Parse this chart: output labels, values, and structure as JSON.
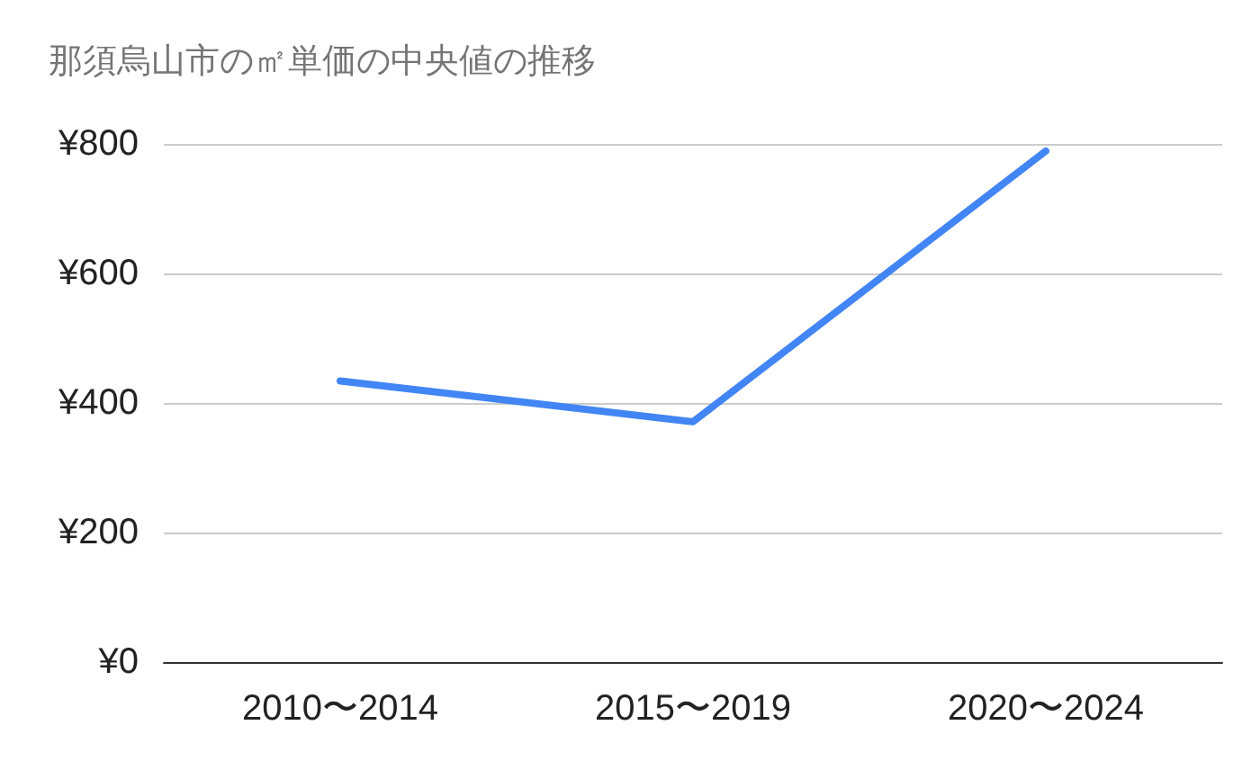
{
  "chart_data": {
    "type": "line",
    "title": "那須烏山市の㎡単価の中央値の推移",
    "categories": [
      "2010〜2014",
      "2015〜2019",
      "2020〜2024"
    ],
    "series": [
      {
        "color": "#4285f4",
        "values": [
          434,
          371,
          789
        ]
      }
    ],
    "ylim": [
      0,
      800
    ],
    "yticks": [
      {
        "value": 0,
        "label": "¥0"
      },
      {
        "value": 200,
        "label": "¥200"
      },
      {
        "value": 400,
        "label": "¥400"
      },
      {
        "value": 600,
        "label": "¥600"
      },
      {
        "value": 800,
        "label": "¥800"
      }
    ],
    "grid": "y",
    "marker": "none",
    "line_style": "solid"
  }
}
